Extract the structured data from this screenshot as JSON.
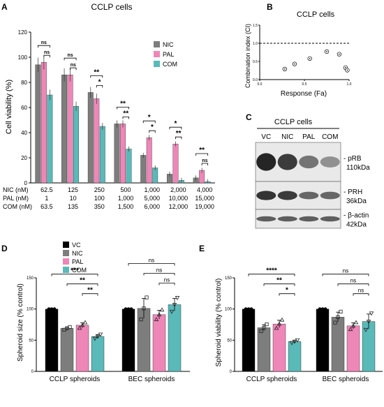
{
  "colors": {
    "vc": "#000000",
    "nic": "#7d7d7d",
    "pal": "#ef86b8",
    "com": "#5ab9b9",
    "grid": "#000000",
    "blot_bg": "#e9e9e9",
    "band": "#1a1a1a"
  },
  "chart_data": [
    {
      "panel": "A",
      "type": "bar",
      "title": "CCLP cells",
      "ylabel": "Cell viability (%)",
      "ylim": [
        0,
        120
      ],
      "yticks": [
        "0",
        "20",
        "40",
        "60",
        "80",
        "100",
        "120"
      ],
      "legend": [
        "NIC",
        "PAL",
        "COM"
      ],
      "legend_position": "top-right",
      "series": [
        {
          "name": "NIC",
          "values": [
            94,
            86,
            72,
            47,
            22,
            7,
            4
          ]
        },
        {
          "name": "PAL",
          "values": [
            96,
            86,
            67,
            47,
            36,
            31,
            10
          ]
        },
        {
          "name": "COM",
          "values": [
            70,
            61,
            45,
            27,
            12,
            2,
            1
          ]
        }
      ],
      "dose_rows": [
        {
          "label": "NIC (nM)",
          "values": [
            "62.5",
            "125",
            "250",
            "500",
            "1,000",
            "2,000",
            "4,000"
          ]
        },
        {
          "label": "PAL (nM)",
          "values": [
            "1",
            "10",
            "100",
            "1,000",
            "5,000",
            "10,000",
            "15,000"
          ]
        },
        {
          "label": "COM (nM)",
          "values": [
            "63.5",
            "135",
            "350",
            "1,500",
            "6,000",
            "12,000",
            "19,000"
          ]
        }
      ],
      "significance": [
        [
          "ns",
          "ns"
        ],
        [
          "ns",
          "ns"
        ],
        [
          "**",
          "*"
        ],
        [
          "**",
          "**"
        ],
        [
          "*",
          "*"
        ],
        [
          "*",
          "**"
        ],
        [
          "**",
          "ns"
        ]
      ]
    },
    {
      "panel": "B",
      "type": "scatter",
      "title": "CCLP cells",
      "xlabel": "Response (Fa)",
      "ylabel": "Combination index (CI)",
      "xlim": [
        0,
        1
      ],
      "ylim": [
        0,
        1.5
      ],
      "xticks": [
        "0.0",
        "0.5",
        "1.0"
      ],
      "yticks": [
        "0.0",
        "0.5",
        "1.0",
        "1.5"
      ],
      "reference_line": 1.0,
      "points": [
        {
          "x": 0.28,
          "y": 0.29
        },
        {
          "x": 0.39,
          "y": 0.43
        },
        {
          "x": 0.56,
          "y": 0.58
        },
        {
          "x": 0.75,
          "y": 0.77
        },
        {
          "x": 0.89,
          "y": 0.7
        },
        {
          "x": 0.96,
          "y": 0.33
        },
        {
          "x": 0.98,
          "y": 0.26
        }
      ]
    },
    {
      "panel": "D",
      "type": "bar",
      "ylabel": "Spheroid size (% control)",
      "ylim": [
        0,
        150
      ],
      "yticks": [
        "0",
        "50",
        "100",
        "150"
      ],
      "groups": [
        "CCLP spheroids",
        "BEC spheroids"
      ],
      "legend": [
        "VC",
        "NIC",
        "PAL",
        "COM"
      ],
      "legend_position": "top-left",
      "series": [
        {
          "name": "VC",
          "values": [
            100,
            100
          ],
          "errors": [
            0,
            0
          ]
        },
        {
          "name": "NIC",
          "values": [
            69,
            101
          ],
          "errors": [
            2,
            16
          ]
        },
        {
          "name": "PAL",
          "values": [
            74,
            91
          ],
          "errors": [
            4,
            7
          ]
        },
        {
          "name": "COM",
          "values": [
            56,
            107
          ],
          "errors": [
            3,
            10
          ]
        }
      ],
      "comparisons": [
        {
          "group": 0,
          "from": "VC",
          "to": "COM",
          "label": "***"
        },
        {
          "group": 0,
          "from": "NIC",
          "to": "COM",
          "label": "**"
        },
        {
          "group": 0,
          "from": "PAL",
          "to": "COM",
          "label": "**"
        },
        {
          "group": 1,
          "from": "VC",
          "to": "COM",
          "label": "ns"
        },
        {
          "group": 1,
          "from": "NIC",
          "to": "COM",
          "label": "ns"
        },
        {
          "group": 1,
          "from": "PAL",
          "to": "COM",
          "label": "ns"
        }
      ]
    },
    {
      "panel": "E",
      "type": "bar",
      "ylabel": "Spheroid viability (% control)",
      "ylim": [
        0,
        150
      ],
      "yticks": [
        "0",
        "50",
        "100",
        "150"
      ],
      "groups": [
        "CCLP spheroids",
        "BEC spheroids"
      ],
      "series": [
        {
          "name": "VC",
          "values": [
            100,
            100
          ],
          "errors": [
            0,
            0
          ]
        },
        {
          "name": "NIC",
          "values": [
            70,
            87
          ],
          "errors": [
            5,
            8
          ]
        },
        {
          "name": "PAL",
          "values": [
            76,
            73
          ],
          "errors": [
            6,
            5
          ]
        },
        {
          "name": "COM",
          "values": [
            48,
            80
          ],
          "errors": [
            2,
            12
          ]
        }
      ],
      "comparisons": [
        {
          "group": 0,
          "from": "VC",
          "to": "COM",
          "label": "****"
        },
        {
          "group": 0,
          "from": "NIC",
          "to": "COM",
          "label": "**"
        },
        {
          "group": 0,
          "from": "PAL",
          "to": "COM",
          "label": "*"
        },
        {
          "group": 1,
          "from": "VC",
          "to": "COM",
          "label": "ns"
        },
        {
          "group": 1,
          "from": "NIC",
          "to": "COM",
          "label": "ns"
        },
        {
          "group": 1,
          "from": "PAL",
          "to": "COM",
          "label": "ns"
        }
      ]
    }
  ],
  "blot": {
    "panel": "C",
    "title": "CCLP cells",
    "lanes": [
      "VC",
      "NIC",
      "PAL",
      "COM"
    ],
    "bands": [
      {
        "label": "- pRB",
        "size": "110kDa",
        "intensities": [
          1.0,
          0.85,
          0.45,
          0.25
        ]
      },
      {
        "label": "- PRH",
        "size": "36kDa",
        "intensities": [
          0.9,
          0.85,
          0.55,
          0.55
        ]
      },
      {
        "label": "- β-actin",
        "size": "42kDa",
        "intensities": [
          0.6,
          0.6,
          0.6,
          0.6
        ]
      }
    ]
  }
}
